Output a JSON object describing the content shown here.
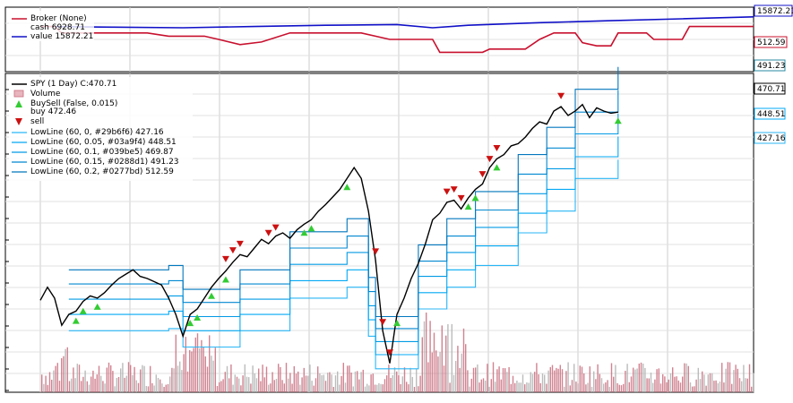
{
  "chart_data": [
    {
      "type": "line",
      "panel": "broker",
      "legend": {
        "title": "Broker (None)",
        "entries": [
          {
            "name": "cash 6928.71",
            "color": "#c8102e"
          },
          {
            "name": "value 15872.21",
            "color": "#1010c8"
          }
        ]
      },
      "x_domain": [
        0,
        100
      ],
      "ylim": [
        0,
        100
      ],
      "value_series": {
        "name": "value",
        "color": "#1010c8",
        "points": [
          [
            0,
            70
          ],
          [
            10,
            69
          ],
          [
            20,
            68
          ],
          [
            30,
            70
          ],
          [
            40,
            72
          ],
          [
            50,
            73
          ],
          [
            55,
            68
          ],
          [
            60,
            72
          ],
          [
            70,
            76
          ],
          [
            80,
            79
          ],
          [
            90,
            82
          ],
          [
            100,
            85
          ]
        ],
        "last": "15872.21"
      },
      "cash_series": {
        "name": "cash",
        "color": "#c8102e",
        "points": [
          [
            0,
            70
          ],
          [
            2,
            70
          ],
          [
            3,
            60
          ],
          [
            15,
            60
          ],
          [
            18,
            55
          ],
          [
            23,
            55
          ],
          [
            25,
            50
          ],
          [
            28,
            42
          ],
          [
            31,
            46
          ],
          [
            35,
            60
          ],
          [
            45,
            60
          ],
          [
            49,
            50
          ],
          [
            55,
            50
          ],
          [
            56,
            30
          ],
          [
            62,
            30
          ],
          [
            63,
            35
          ],
          [
            68,
            35
          ],
          [
            70,
            50
          ],
          [
            72,
            60
          ],
          [
            75,
            60
          ],
          [
            76,
            45
          ],
          [
            78,
            40
          ],
          [
            80,
            40
          ],
          [
            81,
            60
          ],
          [
            85,
            60
          ],
          [
            86,
            50
          ],
          [
            90,
            50
          ],
          [
            91,
            70
          ],
          [
            100,
            70
          ]
        ],
        "tags": [
          "512.59",
          "491.23"
        ]
      }
    },
    {
      "type": "line",
      "panel": "price",
      "title": "SPY (1 Day) C:470.71",
      "x_domain": [
        0,
        100
      ],
      "ylim": [
        220,
        500
      ],
      "price": {
        "name": "SPY (1 Day) C:470.71",
        "color": "#000000",
        "points": [
          [
            0,
            298
          ],
          [
            1,
            310
          ],
          [
            2,
            300
          ],
          [
            3,
            275
          ],
          [
            4,
            285
          ],
          [
            5,
            288
          ],
          [
            6,
            297
          ],
          [
            7,
            302
          ],
          [
            8,
            300
          ],
          [
            9,
            305
          ],
          [
            10,
            312
          ],
          [
            11,
            318
          ],
          [
            12,
            322
          ],
          [
            13,
            326
          ],
          [
            14,
            320
          ],
          [
            15,
            318
          ],
          [
            16,
            315
          ],
          [
            17,
            312
          ],
          [
            18,
            300
          ],
          [
            19,
            285
          ],
          [
            20,
            265
          ],
          [
            21,
            285
          ],
          [
            22,
            290
          ],
          [
            23,
            300
          ],
          [
            24,
            310
          ],
          [
            25,
            318
          ],
          [
            26,
            325
          ],
          [
            27,
            333
          ],
          [
            28,
            340
          ],
          [
            29,
            338
          ],
          [
            30,
            346
          ],
          [
            31,
            354
          ],
          [
            32,
            350
          ],
          [
            33,
            357
          ],
          [
            34,
            360
          ],
          [
            35,
            355
          ],
          [
            36,
            363
          ],
          [
            37,
            368
          ],
          [
            38,
            372
          ],
          [
            39,
            380
          ],
          [
            40,
            386
          ],
          [
            41,
            393
          ],
          [
            42,
            400
          ],
          [
            43,
            410
          ],
          [
            44,
            420
          ],
          [
            45,
            410
          ],
          [
            46,
            380
          ],
          [
            47,
            335
          ],
          [
            48,
            270
          ],
          [
            49,
            240
          ],
          [
            50,
            285
          ],
          [
            51,
            300
          ],
          [
            52,
            318
          ],
          [
            53,
            332
          ],
          [
            54,
            350
          ],
          [
            55,
            372
          ],
          [
            56,
            378
          ],
          [
            57,
            388
          ],
          [
            58,
            390
          ],
          [
            59,
            382
          ],
          [
            60,
            392
          ],
          [
            61,
            400
          ],
          [
            62,
            405
          ],
          [
            63,
            420
          ],
          [
            64,
            428
          ],
          [
            65,
            432
          ],
          [
            66,
            440
          ],
          [
            67,
            442
          ],
          [
            68,
            448
          ],
          [
            69,
            456
          ],
          [
            70,
            462
          ],
          [
            71,
            460
          ],
          [
            72,
            472
          ],
          [
            73,
            476
          ],
          [
            74,
            468
          ],
          [
            75,
            472
          ],
          [
            76,
            478
          ],
          [
            77,
            466
          ],
          [
            78,
            475
          ],
          [
            79,
            472
          ],
          [
            80,
            470
          ],
          [
            81,
            471
          ]
        ]
      },
      "low_lines": [
        {
          "name": "LowLine (60, 0, #29b6f6) 427.16",
          "color": "#29b6f6",
          "points": [
            [
              4,
              270
            ],
            [
              14,
              270
            ],
            [
              18,
              272
            ],
            [
              20,
              255
            ],
            [
              28,
              270
            ],
            [
              35,
              300
            ],
            [
              43,
              310
            ],
            [
              46,
              265
            ],
            [
              47,
              235
            ],
            [
              51,
              235
            ],
            [
              53,
              290
            ],
            [
              57,
              310
            ],
            [
              61,
              330
            ],
            [
              67,
              360
            ],
            [
              71,
              380
            ],
            [
              75,
              410
            ],
            [
              81,
              427.16
            ]
          ]
        },
        {
          "name": "LowLine (60, 0.05, #03a9f4) 448.51",
          "color": "#03a9f4",
          "points": [
            [
              4,
              285
            ],
            [
              14,
              285
            ],
            [
              18,
              288
            ],
            [
              20,
              270
            ],
            [
              28,
              285
            ],
            [
              35,
              316
            ],
            [
              43,
              326
            ],
            [
              46,
              280
            ],
            [
              47,
              248
            ],
            [
              51,
              248
            ],
            [
              53,
              305
            ],
            [
              57,
              326
            ],
            [
              61,
              348
            ],
            [
              67,
              378
            ],
            [
              71,
              400
            ],
            [
              75,
              430
            ],
            [
              81,
              448.51
            ]
          ]
        },
        {
          "name": "LowLine (60, 0.1, #039be5) 469.87",
          "color": "#039be5",
          "points": [
            [
              4,
              299
            ],
            [
              14,
              299
            ],
            [
              18,
              302
            ],
            [
              20,
              283
            ],
            [
              28,
              299
            ],
            [
              35,
              331
            ],
            [
              43,
              342
            ],
            [
              46,
              293
            ],
            [
              47,
              260
            ],
            [
              51,
              260
            ],
            [
              53,
              320
            ],
            [
              57,
              342
            ],
            [
              61,
              365
            ],
            [
              67,
              396
            ],
            [
              71,
              419
            ],
            [
              75,
              451
            ],
            [
              81,
              469.87
            ]
          ]
        },
        {
          "name": "LowLine (60, 0.15, #0288d1) 491.23",
          "color": "#0288d1",
          "points": [
            [
              4,
              313
            ],
            [
              14,
              313
            ],
            [
              18,
              316
            ],
            [
              20,
              296
            ],
            [
              28,
              313
            ],
            [
              35,
              346
            ],
            [
              43,
              357
            ],
            [
              46,
              306
            ],
            [
              47,
              272
            ],
            [
              51,
              272
            ],
            [
              53,
              334
            ],
            [
              57,
              357
            ],
            [
              61,
              381
            ],
            [
              67,
              414
            ],
            [
              71,
              438
            ],
            [
              75,
              471
            ],
            [
              81,
              491.23
            ]
          ]
        },
        {
          "name": "LowLine (60, 0.2, #0277bd) 512.59",
          "color": "#0277bd",
          "points": [
            [
              4,
              326
            ],
            [
              14,
              326
            ],
            [
              18,
              330
            ],
            [
              20,
              308
            ],
            [
              28,
              326
            ],
            [
              35,
              361
            ],
            [
              43,
              373
            ],
            [
              46,
              319
            ],
            [
              47,
              283
            ],
            [
              51,
              283
            ],
            [
              53,
              349
            ],
            [
              57,
              373
            ],
            [
              61,
              398
            ],
            [
              67,
              432
            ],
            [
              71,
              457
            ],
            [
              75,
              492
            ],
            [
              81,
              512.59
            ]
          ]
        }
      ],
      "volume": {
        "name": "Volume",
        "color": "#c96d7e"
      },
      "buysell": {
        "name": "BuySell (False, 0.015)",
        "buy_label": "buy 472.46",
        "sell_label": "sell",
        "buy_color": "#33cc33",
        "sell_color": "#cc1111",
        "buys": [
          [
            5,
            287
          ],
          [
            6,
            296
          ],
          [
            8,
            300
          ],
          [
            21,
            285
          ],
          [
            22,
            290
          ],
          [
            24,
            310
          ],
          [
            26,
            325
          ],
          [
            37,
            368
          ],
          [
            38,
            372
          ],
          [
            43,
            410
          ],
          [
            50,
            285
          ],
          [
            60,
            392
          ],
          [
            61,
            400
          ],
          [
            64,
            428
          ],
          [
            81,
            471
          ]
        ],
        "sells": [
          [
            26,
            328
          ],
          [
            27,
            336
          ],
          [
            28,
            342
          ],
          [
            32,
            352
          ],
          [
            33,
            357
          ],
          [
            47,
            335
          ],
          [
            48,
            270
          ],
          [
            49,
            242
          ],
          [
            57,
            390
          ],
          [
            58,
            392
          ],
          [
            59,
            384
          ],
          [
            62,
            406
          ],
          [
            63,
            420
          ],
          [
            64,
            430
          ],
          [
            73,
            478
          ]
        ]
      },
      "tags": [
        "470.71",
        "448.51",
        "427.16"
      ]
    }
  ]
}
